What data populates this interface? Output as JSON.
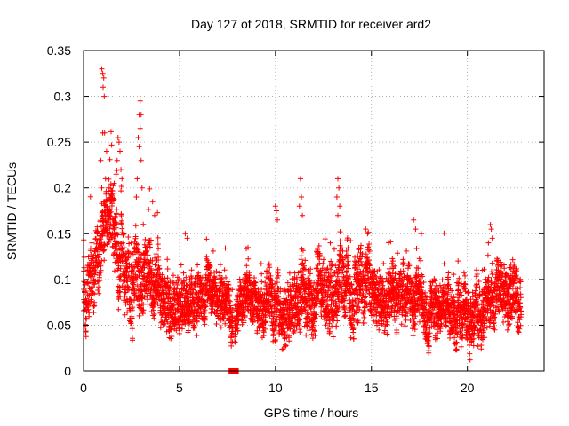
{
  "chart_data": {
    "type": "scatter",
    "title": "Day 127 of 2018, SRMTID for receiver ard2",
    "xlabel": "GPS time / hours",
    "ylabel": "SRMTID / TECUs",
    "xlim": [
      0,
      24
    ],
    "ylim": [
      0,
      0.35
    ],
    "xticks": [
      0,
      5,
      10,
      15,
      20
    ],
    "xtick_labels": [
      "0",
      "5",
      "10",
      "15",
      "20"
    ],
    "yticks": [
      0,
      0.05,
      0.1,
      0.15,
      0.2,
      0.25,
      0.3,
      0.35
    ],
    "ytick_labels": [
      "0",
      "0.05",
      "0.1",
      "0.15",
      "0.2",
      "0.25",
      "0.3",
      "0.35"
    ],
    "grid": true,
    "marker": "+",
    "color": "#ff0000",
    "x_step_hours": 0.0125,
    "x_start_hours": 0,
    "trend": [
      [
        0,
        0.09
      ],
      [
        0.4,
        0.1
      ],
      [
        0.8,
        0.12
      ],
      [
        1.1,
        0.17
      ],
      [
        1.4,
        0.16
      ],
      [
        1.8,
        0.14
      ],
      [
        2.2,
        0.11
      ],
      [
        2.6,
        0.1
      ],
      [
        3.0,
        0.1
      ],
      [
        3.5,
        0.1
      ],
      [
        4.0,
        0.09
      ],
      [
        4.5,
        0.08
      ],
      [
        5.0,
        0.075
      ],
      [
        6.0,
        0.075
      ],
      [
        7.0,
        0.08
      ],
      [
        7.5,
        0.07
      ],
      [
        8.0,
        0.06
      ],
      [
        8.5,
        0.075
      ],
      [
        9.0,
        0.08
      ],
      [
        9.5,
        0.07
      ],
      [
        10.0,
        0.065
      ],
      [
        10.5,
        0.075
      ],
      [
        11.0,
        0.08
      ],
      [
        12.0,
        0.08
      ],
      [
        12.5,
        0.085
      ],
      [
        13.0,
        0.09
      ],
      [
        13.5,
        0.095
      ],
      [
        14.0,
        0.095
      ],
      [
        14.5,
        0.09
      ],
      [
        15.0,
        0.085
      ],
      [
        15.5,
        0.085
      ],
      [
        16.0,
        0.08
      ],
      [
        16.5,
        0.08
      ],
      [
        17.0,
        0.08
      ],
      [
        17.5,
        0.075
      ],
      [
        18.0,
        0.07
      ],
      [
        18.5,
        0.065
      ],
      [
        19.0,
        0.065
      ],
      [
        19.5,
        0.06
      ],
      [
        20.0,
        0.055
      ],
      [
        20.5,
        0.06
      ],
      [
        21.0,
        0.075
      ],
      [
        21.5,
        0.09
      ],
      [
        22.0,
        0.085
      ],
      [
        22.8,
        0.085
      ]
    ],
    "spread": [
      [
        0,
        0.025
      ],
      [
        1,
        0.03
      ],
      [
        2,
        0.035
      ],
      [
        3,
        0.03
      ],
      [
        4,
        0.025
      ],
      [
        8,
        0.02
      ],
      [
        10,
        0.025
      ],
      [
        13,
        0.03
      ],
      [
        16,
        0.025
      ],
      [
        19,
        0.022
      ],
      [
        22,
        0.025
      ],
      [
        22.8,
        0.025
      ]
    ],
    "gaps": [
      [
        7.78,
        7.87
      ]
    ],
    "excursions": [
      [
        0.95,
        0.33
      ],
      [
        1.0,
        0.325
      ],
      [
        1.05,
        0.32
      ],
      [
        1.02,
        0.31
      ],
      [
        1.08,
        0.3
      ],
      [
        1.0,
        0.26
      ],
      [
        1.1,
        0.26
      ],
      [
        0.9,
        0.23
      ],
      [
        1.2,
        0.24
      ],
      [
        1.15,
        0.21
      ],
      [
        1.3,
        0.2
      ],
      [
        0.95,
        0.2
      ],
      [
        1.8,
        0.255
      ],
      [
        1.85,
        0.25
      ],
      [
        1.9,
        0.24
      ],
      [
        1.75,
        0.23
      ],
      [
        1.95,
        0.22
      ],
      [
        1.7,
        0.215
      ],
      [
        2.0,
        0.21
      ],
      [
        1.6,
        0.205
      ],
      [
        2.95,
        0.295
      ],
      [
        2.9,
        0.28
      ],
      [
        3.0,
        0.28
      ],
      [
        2.95,
        0.265
      ],
      [
        2.85,
        0.255
      ],
      [
        2.9,
        0.245
      ],
      [
        3.0,
        0.23
      ],
      [
        2.8,
        0.21
      ],
      [
        3.05,
        0.2
      ],
      [
        2.75,
        0.19
      ],
      [
        3.6,
        0.185
      ],
      [
        3.7,
        0.17
      ],
      [
        5.3,
        0.15
      ],
      [
        5.4,
        0.145
      ],
      [
        10.0,
        0.18
      ],
      [
        10.05,
        0.175
      ],
      [
        10.1,
        0.165
      ],
      [
        11.3,
        0.21
      ],
      [
        11.35,
        0.19
      ],
      [
        11.25,
        0.18
      ],
      [
        11.4,
        0.17
      ],
      [
        13.25,
        0.21
      ],
      [
        13.3,
        0.2
      ],
      [
        13.2,
        0.19
      ],
      [
        13.35,
        0.18
      ],
      [
        13.25,
        0.17
      ],
      [
        14.7,
        0.155
      ],
      [
        14.8,
        0.15
      ],
      [
        17.2,
        0.165
      ],
      [
        17.3,
        0.155
      ],
      [
        17.6,
        0.15
      ],
      [
        21.2,
        0.16
      ],
      [
        21.25,
        0.155
      ],
      [
        21.3,
        0.145
      ],
      [
        21.1,
        0.14
      ]
    ],
    "baseline_markers": [
      [
        7.7,
        0
      ],
      [
        7.95,
        0
      ]
    ],
    "seed": 127
  }
}
